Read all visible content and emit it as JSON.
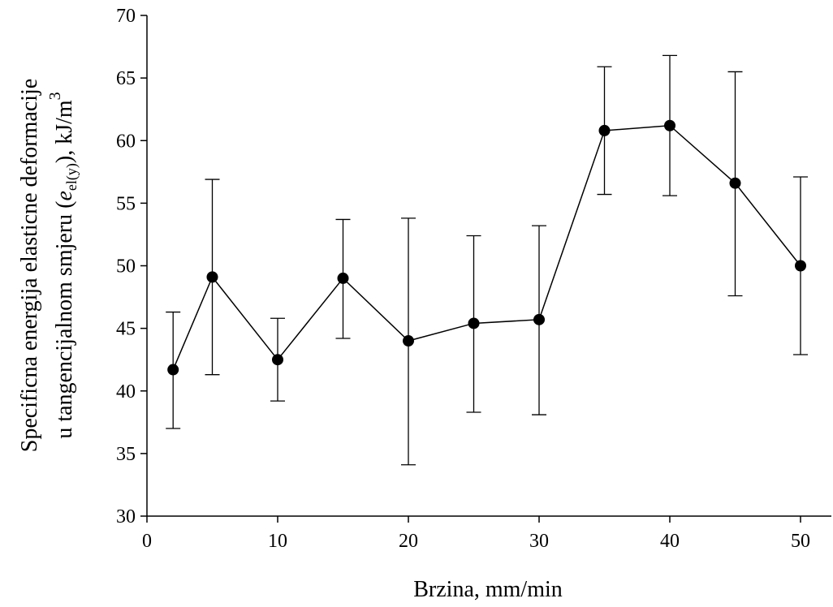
{
  "chart_data": {
    "type": "scatter",
    "connected": true,
    "marker": "filled-circle",
    "error_bars": true,
    "x": [
      2,
      5,
      10,
      15,
      20,
      25,
      30,
      35,
      40,
      45,
      50
    ],
    "y": [
      41.7,
      49.1,
      42.5,
      49.0,
      44.0,
      45.4,
      45.7,
      60.8,
      61.2,
      56.6,
      50.0
    ],
    "y_lower": [
      37.0,
      41.3,
      39.2,
      44.2,
      34.1,
      38.3,
      38.1,
      55.7,
      55.6,
      47.6,
      42.9
    ],
    "y_upper": [
      46.3,
      56.9,
      45.8,
      53.7,
      53.8,
      52.4,
      53.2,
      65.9,
      66.8,
      65.5,
      57.1
    ],
    "xlim": [
      0,
      55
    ],
    "ylim": [
      30,
      70
    ],
    "xticks": [
      0,
      10,
      20,
      30,
      40,
      50
    ],
    "yticks": [
      30,
      35,
      40,
      45,
      50,
      55,
      60,
      65,
      70
    ],
    "xlabel": "Brzina, mm/min",
    "ylabel_line1": "Specificna energija elasticne deformacije",
    "ylabel_line2_prefix": "u tangencijalnom smjeru (",
    "ylabel_line2_var": "e",
    "ylabel_line2_sub": "el(y)",
    "ylabel_line2_suffix": "), kJ/m",
    "ylabel_line2_sup": "3",
    "grid": false,
    "colors": {
      "line": "#000000",
      "marker": "#000000",
      "background": "#ffffff"
    }
  }
}
